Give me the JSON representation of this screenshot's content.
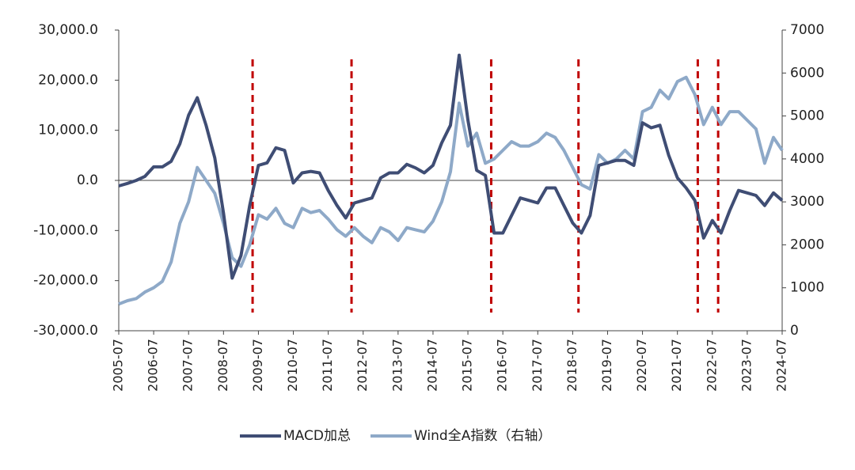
{
  "chart_data": {
    "type": "line",
    "x": [
      "2005-07",
      "2005-10",
      "2006-01",
      "2006-04",
      "2006-07",
      "2006-10",
      "2007-01",
      "2007-04",
      "2007-07",
      "2007-10",
      "2008-01",
      "2008-04",
      "2008-07",
      "2008-10",
      "2009-01",
      "2009-04",
      "2009-07",
      "2009-10",
      "2010-01",
      "2010-04",
      "2010-07",
      "2010-10",
      "2011-01",
      "2011-04",
      "2011-07",
      "2011-10",
      "2012-01",
      "2012-04",
      "2012-07",
      "2012-10",
      "2013-01",
      "2013-04",
      "2013-07",
      "2013-10",
      "2014-01",
      "2014-04",
      "2014-07",
      "2014-10",
      "2015-01",
      "2015-04",
      "2015-07",
      "2015-10",
      "2016-01",
      "2016-04",
      "2016-07",
      "2016-10",
      "2017-01",
      "2017-04",
      "2017-07",
      "2017-10",
      "2018-01",
      "2018-04",
      "2018-07",
      "2018-10",
      "2019-01",
      "2019-04",
      "2019-07",
      "2019-10",
      "2020-01",
      "2020-04",
      "2020-07",
      "2020-10",
      "2021-01",
      "2021-04",
      "2021-07",
      "2021-10",
      "2022-01",
      "2022-04",
      "2022-07",
      "2022-10",
      "2023-01",
      "2023-04",
      "2023-07",
      "2023-10",
      "2024-01",
      "2024-04",
      "2024-07"
    ],
    "xlim": [
      "2005-07",
      "2024-07"
    ],
    "xticks": [
      "2005-07",
      "2006-07",
      "2007-07",
      "2008-07",
      "2009-07",
      "2010-07",
      "2011-07",
      "2012-07",
      "2013-07",
      "2014-07",
      "2015-07",
      "2016-07",
      "2017-07",
      "2018-07",
      "2019-07",
      "2020-07",
      "2021-07",
      "2022-07",
      "2023-07",
      "2024-07"
    ],
    "series": [
      {
        "name": "MACD加总",
        "color": "#3f4d74",
        "values": [
          -1100,
          -600,
          0,
          800,
          2700,
          2700,
          3800,
          7300,
          13000,
          16500,
          11000,
          4500,
          -6500,
          -19500,
          -15000,
          -5000,
          3000,
          3500,
          6500,
          6000,
          -500,
          1500,
          1800,
          1500,
          -2000,
          -5000,
          -7500,
          -4500,
          -4000,
          -3500,
          500,
          1500,
          1500,
          3200,
          2500,
          1500,
          3000,
          7500,
          11000,
          25000,
          12000,
          2000,
          1000,
          -10500,
          -10500,
          -7000,
          -3500,
          -4000,
          -4500,
          -1500,
          -1500,
          -5000,
          -8500,
          -10500,
          -7000,
          3000,
          3500,
          4000,
          4000,
          3000,
          11500,
          10500,
          11000,
          5000,
          500,
          -1500,
          -4000,
          -11500,
          -8000,
          -10500,
          -6000,
          -2000,
          -2500,
          -3000,
          -5000,
          -2500,
          -4000
        ]
      },
      {
        "name": "Wind全A指数（右轴）",
        "color": "#8ea9c8",
        "axis": "y2",
        "values": [
          620,
          700,
          750,
          900,
          1000,
          1150,
          1600,
          2500,
          3000,
          3800,
          3500,
          3200,
          2500,
          1700,
          1500,
          2000,
          2700,
          2600,
          2850,
          2500,
          2400,
          2850,
          2750,
          2800,
          2600,
          2350,
          2200,
          2400,
          2200,
          2050,
          2400,
          2300,
          2100,
          2400,
          2350,
          2300,
          2550,
          3000,
          3700,
          5300,
          4300,
          4600,
          3900,
          4000,
          4200,
          4400,
          4300,
          4300,
          4400,
          4600,
          4500,
          4200,
          3800,
          3400,
          3300,
          4100,
          3900,
          4000,
          4200,
          4000,
          5100,
          5200,
          5600,
          5400,
          5800,
          5900,
          5500,
          4800,
          5200,
          4800,
          5100,
          5100,
          4900,
          4700,
          3900,
          4500,
          4200
        ]
      }
    ],
    "ylim": [
      -30000,
      30000
    ],
    "yticks": [
      {
        "value": -30000,
        "label": "-30,000.0"
      },
      {
        "value": -20000,
        "label": "-20,000.0"
      },
      {
        "value": -10000,
        "label": "-10,000.0"
      },
      {
        "value": 0,
        "label": "0.0"
      },
      {
        "value": 10000,
        "label": "10,000.0"
      },
      {
        "value": 20000,
        "label": "20,000.0"
      },
      {
        "value": 30000,
        "label": "30,000.0"
      }
    ],
    "y2lim": [
      0,
      7000
    ],
    "y2ticks": [
      0,
      1000,
      2000,
      3000,
      4000,
      5000,
      6000,
      7000
    ],
    "markers": {
      "color": "#c00000",
      "x": [
        "2009-05",
        "2012-03",
        "2016-03",
        "2018-09",
        "2022-02",
        "2022-09"
      ]
    },
    "legend": "bottom"
  }
}
